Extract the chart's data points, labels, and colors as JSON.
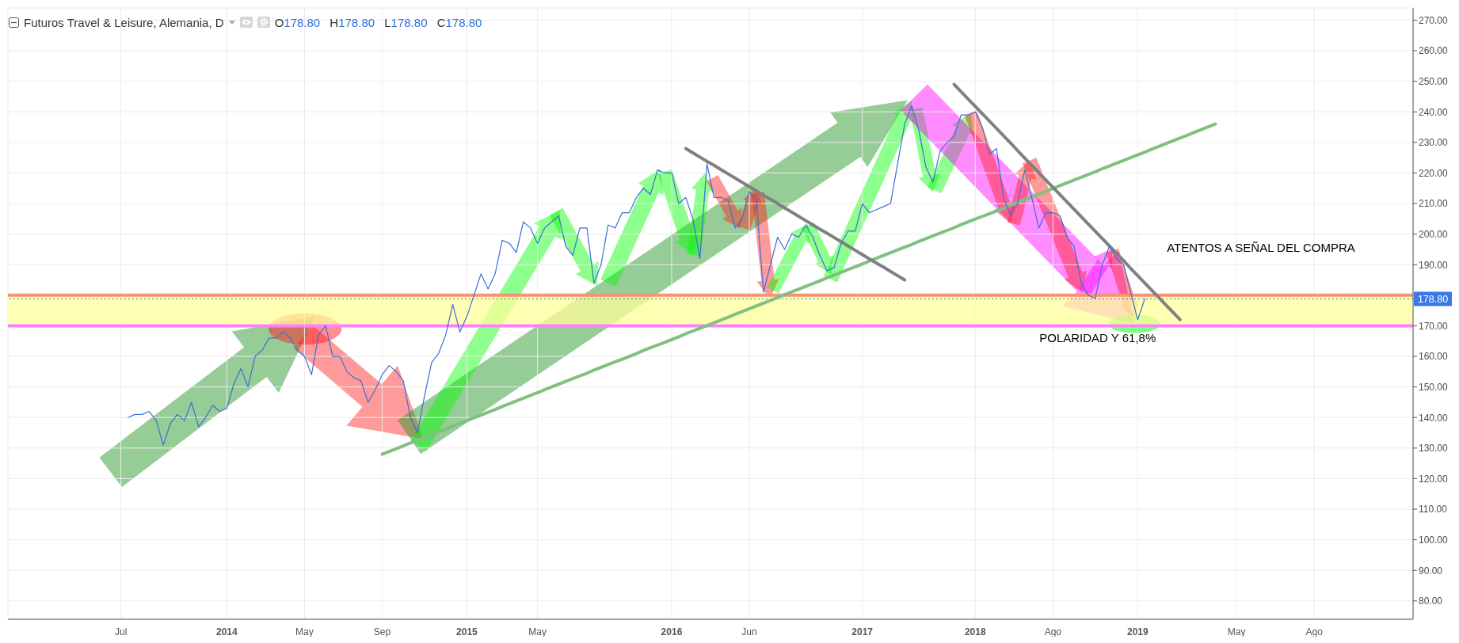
{
  "chart_data": {
    "type": "line",
    "title": "Futuros Travel & Leisure, Alemania, D",
    "subtitle": "O178.80 H178.80 L178.80 C178.80",
    "annotations": [
      "ATENTOS A SEÑAL DEL COMPRA",
      "POLARIDAD Y 61,8%"
    ],
    "categories": [
      null,
      null,
      null,
      null,
      null,
      null,
      null,
      null,
      null,
      null,
      null,
      null,
      null,
      null,
      null,
      null,
      "Jul",
      null,
      null,
      null,
      null,
      null,
      null,
      null,
      null,
      null,
      null,
      null,
      null,
      null,
      null,
      "2014",
      null,
      null,
      null,
      null,
      null,
      null,
      null,
      null,
      null,
      null,
      "May",
      null,
      null,
      null,
      null,
      null,
      null,
      null,
      null,
      null,
      null,
      "Sep",
      null,
      null,
      null,
      null,
      null,
      null,
      null,
      null,
      null,
      null,
      null,
      "2015",
      null,
      null,
      null,
      null,
      null,
      null,
      null,
      null,
      null,
      "May",
      null,
      null,
      null,
      null,
      null,
      null,
      null,
      null,
      null,
      null,
      null,
      null,
      null,
      null,
      null,
      null,
      null,
      null,
      "2016",
      null,
      null,
      null,
      null,
      null,
      null,
      null,
      null,
      null,
      null,
      "Jun",
      null,
      null,
      null,
      null,
      null,
      null,
      null,
      null,
      null,
      null,
      null,
      null,
      null,
      null,
      null,
      "2017",
      null,
      null,
      null,
      null,
      null,
      null,
      null,
      null,
      null,
      null,
      null,
      null,
      null,
      null,
      null,
      "2018",
      null,
      null,
      null,
      null,
      null,
      null,
      null,
      null,
      null,
      null,
      "Ago",
      null,
      null,
      null,
      null,
      null,
      null,
      null,
      null,
      null,
      null,
      null,
      "2019",
      null,
      null,
      null,
      null,
      null,
      null,
      null,
      null,
      null,
      null,
      null,
      null,
      null,
      "May",
      null,
      null,
      null,
      null,
      null,
      null,
      null,
      null,
      null,
      null,
      "Ago",
      null,
      null,
      null,
      null,
      null,
      null,
      null,
      null,
      null,
      null,
      null,
      null,
      null,
      null
    ],
    "ylim": [
      74,
      274
    ],
    "yticks": [
      {
        "value": 80,
        "label": "80.00"
      },
      {
        "value": 90,
        "label": "90.00"
      },
      {
        "value": 100,
        "label": "100.00"
      },
      {
        "value": 110,
        "label": "110.00"
      },
      {
        "value": 120,
        "label": "120.00"
      },
      {
        "value": 130,
        "label": "130.00"
      },
      {
        "value": 140,
        "label": "140.00"
      },
      {
        "value": 150,
        "label": "150.00"
      },
      {
        "value": 160,
        "label": "160.00"
      },
      {
        "value": 170,
        "label": "170.00"
      },
      {
        "value": 190,
        "label": "190.00"
      },
      {
        "value": 200,
        "label": "200.00"
      },
      {
        "value": 210,
        "label": "210.00"
      },
      {
        "value": 220,
        "label": "220.00"
      },
      {
        "value": 230,
        "label": "230.00"
      },
      {
        "value": 240,
        "label": "240.00"
      },
      {
        "value": 250,
        "label": "250.00"
      },
      {
        "value": 260,
        "label": "260.00"
      },
      {
        "value": 270,
        "label": "270.00"
      }
    ],
    "grid": true,
    "series": [
      {
        "color": "#3d6fd6",
        "values": [
          null,
          null,
          null,
          null,
          null,
          null,
          null,
          null,
          null,
          null,
          null,
          null,
          null,
          null,
          null,
          null,
          null,
          140,
          141,
          141,
          142,
          139,
          131,
          138,
          141,
          139,
          145,
          137,
          140,
          144,
          142,
          143,
          151,
          156,
          150,
          160,
          162,
          166,
          166,
          168,
          166,
          162,
          160,
          154,
          167,
          170,
          160,
          160,
          155,
          153,
          152,
          145,
          149,
          154,
          157,
          155,
          152,
          140,
          135,
          147,
          158,
          161,
          167,
          177,
          168,
          173,
          180,
          187,
          182,
          187,
          198,
          197,
          194,
          204,
          202,
          197,
          202,
          204,
          206,
          196,
          193,
          202,
          202,
          184,
          190,
          203,
          202,
          207,
          207,
          212,
          215,
          213,
          221,
          220,
          220,
          210,
          212,
          205,
          192,
          223,
          212,
          212,
          211,
          202,
          205,
          214,
          211,
          181,
          190,
          199,
          195,
          200,
          199,
          203,
          199,
          193,
          188,
          189,
          197,
          201,
          201,
          210,
          207,
          208,
          209,
          210,
          223,
          236,
          242,
          234,
          222,
          217,
          227,
          230,
          232,
          239,
          239,
          240,
          235,
          226,
          228,
          212,
          206,
          210,
          221,
          212,
          202,
          207,
          207,
          206,
          199,
          196,
          184,
          180,
          179,
          190,
          196,
          192,
          190,
          181,
          172,
          178.8,
          null,
          null,
          null,
          null,
          null,
          null,
          null,
          null,
          null,
          null,
          null,
          null,
          null,
          null,
          null,
          null,
          null,
          null,
          null,
          null,
          null,
          null,
          null,
          null,
          null,
          null,
          null,
          null,
          null,
          null,
          null,
          null,
          null,
          null,
          null,
          null,
          null,
          null
        ]
      },
      {
        "color": "#808080",
        "values": [
          null,
          null,
          null,
          null,
          null,
          null,
          null,
          null,
          null,
          null,
          null,
          null,
          null,
          null,
          null,
          null,
          null,
          null,
          null,
          null,
          null,
          null,
          null,
          null,
          null,
          null,
          null,
          null,
          null,
          null,
          null,
          null,
          null,
          null,
          null,
          null,
          null,
          null,
          null,
          null,
          null,
          null,
          null,
          null,
          null,
          null,
          null,
          null,
          null,
          null,
          null,
          null,
          null,
          null,
          null,
          null,
          null,
          null,
          null,
          null,
          null,
          null,
          null,
          null,
          null,
          null,
          null,
          null,
          null,
          null,
          null,
          null,
          null,
          null,
          null,
          null,
          null,
          null,
          null,
          null,
          null,
          null,
          null,
          null,
          null,
          null,
          null,
          null,
          null,
          null,
          null,
          null,
          null,
          null,
          null,
          null,
          228.0,
          226.6,
          225.2,
          223.8,
          222.5,
          221.1,
          219.7,
          218.3,
          216.9,
          215.5,
          214.1,
          212.7,
          211.4,
          210.0,
          208.6,
          207.2,
          205.8,
          204.4,
          203.0,
          201.6,
          200.3,
          198.9,
          197.5,
          196.1,
          194.7,
          193.3,
          191.9,
          190.5,
          189.2,
          187.8,
          186.4,
          185.0,
          null,
          null,
          null,
          null,
          null,
          null,
          null,
          null,
          null,
          null,
          null,
          null,
          null,
          null,
          null,
          null,
          null,
          null,
          null,
          null,
          null,
          null,
          null,
          null,
          null,
          null,
          null,
          null,
          null,
          null,
          null,
          null,
          null,
          null,
          null,
          null,
          null,
          null,
          null,
          null,
          null,
          null,
          null,
          null,
          null,
          null,
          null,
          null,
          null,
          null,
          null,
          null,
          null,
          null,
          null,
          null,
          null,
          null,
          null,
          null,
          null,
          null,
          null,
          null,
          null,
          null,
          null,
          null,
          null,
          null,
          null,
          null
        ]
      },
      {
        "color": "#808080",
        "values": [
          null,
          null,
          null,
          null,
          null,
          null,
          null,
          null,
          null,
          null,
          null,
          null,
          null,
          null,
          null,
          null,
          null,
          null,
          null,
          null,
          null,
          null,
          null,
          null,
          null,
          null,
          null,
          null,
          null,
          null,
          null,
          null,
          null,
          null,
          null,
          null,
          null,
          null,
          null,
          null,
          null,
          null,
          null,
          null,
          null,
          null,
          null,
          null,
          null,
          null,
          null,
          null,
          null,
          null,
          null,
          null,
          null,
          null,
          null,
          null,
          null,
          null,
          null,
          null,
          null,
          null,
          null,
          null,
          null,
          null,
          null,
          null,
          null,
          null,
          null,
          null,
          null,
          null,
          null,
          null,
          null,
          null,
          null,
          null,
          null,
          null,
          null,
          null,
          null,
          null,
          null,
          null,
          null,
          null,
          null,
          null,
          null,
          null,
          null,
          null,
          null,
          null,
          null,
          null,
          null,
          null,
          null,
          null,
          null,
          null,
          null,
          null,
          null,
          null,
          null,
          null,
          null,
          null,
          null,
          null,
          null,
          null,
          null,
          null,
          null,
          null,
          null,
          null,
          null,
          null,
          null,
          null,
          null,
          null,
          249.0,
          246.6,
          244.2,
          241.8,
          239.4,
          237.0,
          234.6,
          232.2,
          229.8,
          227.3,
          224.9,
          222.5,
          220.1,
          217.7,
          215.3,
          212.9,
          210.5,
          208.1,
          205.7,
          203.3,
          200.9,
          198.5,
          196.1,
          193.7,
          191.3,
          188.8,
          186.4,
          184.0,
          181.6,
          179.2,
          176.8,
          174.4,
          172.0,
          null,
          null,
          null,
          null,
          null,
          null,
          null,
          null,
          null,
          null,
          null,
          null,
          null,
          null,
          null,
          null,
          null,
          null,
          null,
          null,
          null,
          null,
          null,
          null,
          null,
          null,
          null,
          null,
          null,
          null,
          null,
          null,
          null
        ]
      },
      {
        "color": "#80c080",
        "values": [
          null,
          null,
          null,
          null,
          null,
          null,
          null,
          null,
          null,
          null,
          null,
          null,
          null,
          null,
          null,
          null,
          null,
          null,
          null,
          null,
          null,
          null,
          null,
          null,
          null,
          null,
          null,
          null,
          null,
          null,
          null,
          null,
          null,
          null,
          null,
          null,
          null,
          null,
          null,
          null,
          null,
          null,
          null,
          null,
          null,
          null,
          null,
          null,
          null,
          null,
          null,
          null,
          null,
          128.0,
          128.9,
          129.8,
          130.7,
          131.7,
          132.6,
          133.5,
          134.4,
          135.3,
          136.2,
          137.2,
          138.1,
          139.0,
          139.9,
          140.8,
          141.7,
          142.6,
          143.6,
          144.5,
          145.4,
          146.3,
          147.2,
          148.1,
          149.1,
          150.0,
          150.9,
          151.8,
          152.7,
          153.6,
          154.5,
          155.5,
          156.4,
          157.3,
          158.2,
          159.1,
          160.0,
          160.9,
          161.9,
          162.8,
          163.7,
          164.6,
          165.5,
          166.4,
          167.4,
          168.3,
          169.2,
          170.1,
          171.0,
          171.9,
          172.8,
          173.8,
          174.7,
          175.6,
          176.5,
          177.4,
          178.3,
          179.3,
          180.2,
          181.1,
          182.0,
          182.9,
          183.8,
          184.7,
          185.7,
          186.6,
          187.5,
          188.4,
          189.3,
          190.2,
          191.2,
          192.1,
          193.0,
          193.9,
          194.8,
          195.7,
          196.6,
          197.6,
          198.5,
          199.4,
          200.3,
          201.2,
          202.1,
          203.1,
          204.0,
          204.9,
          205.8,
          206.7,
          207.6,
          208.5,
          209.5,
          210.4,
          211.3,
          212.2,
          213.1,
          214.0,
          214.9,
          215.9,
          216.8,
          217.7,
          218.6,
          219.5,
          220.4,
          221.4,
          222.3,
          223.2,
          224.1,
          225.0,
          225.9,
          226.8,
          227.8,
          228.7,
          229.6,
          230.5,
          231.4,
          232.3,
          233.3,
          234.2,
          235.1,
          236.0,
          null,
          null,
          null,
          null,
          null,
          null,
          null,
          null,
          null,
          null,
          null,
          null,
          null,
          null,
          null,
          null,
          null,
          null,
          null,
          null,
          null,
          null,
          null,
          null,
          null,
          null,
          null,
          null
        ]
      }
    ],
    "ref_lines": [
      {
        "axis": "y",
        "value": 180,
        "color": "#f7936f"
      },
      {
        "axis": "y",
        "value": 170,
        "color": "#ff80ff"
      },
      {
        "axis": "y",
        "value": 178.8,
        "label": "178.80",
        "color": "#3b78e7",
        "line_style": "dotted"
      }
    ],
    "bands": [
      {
        "axis": "y",
        "from": 170,
        "to": 180,
        "color": "#ffff99"
      }
    ]
  }
}
